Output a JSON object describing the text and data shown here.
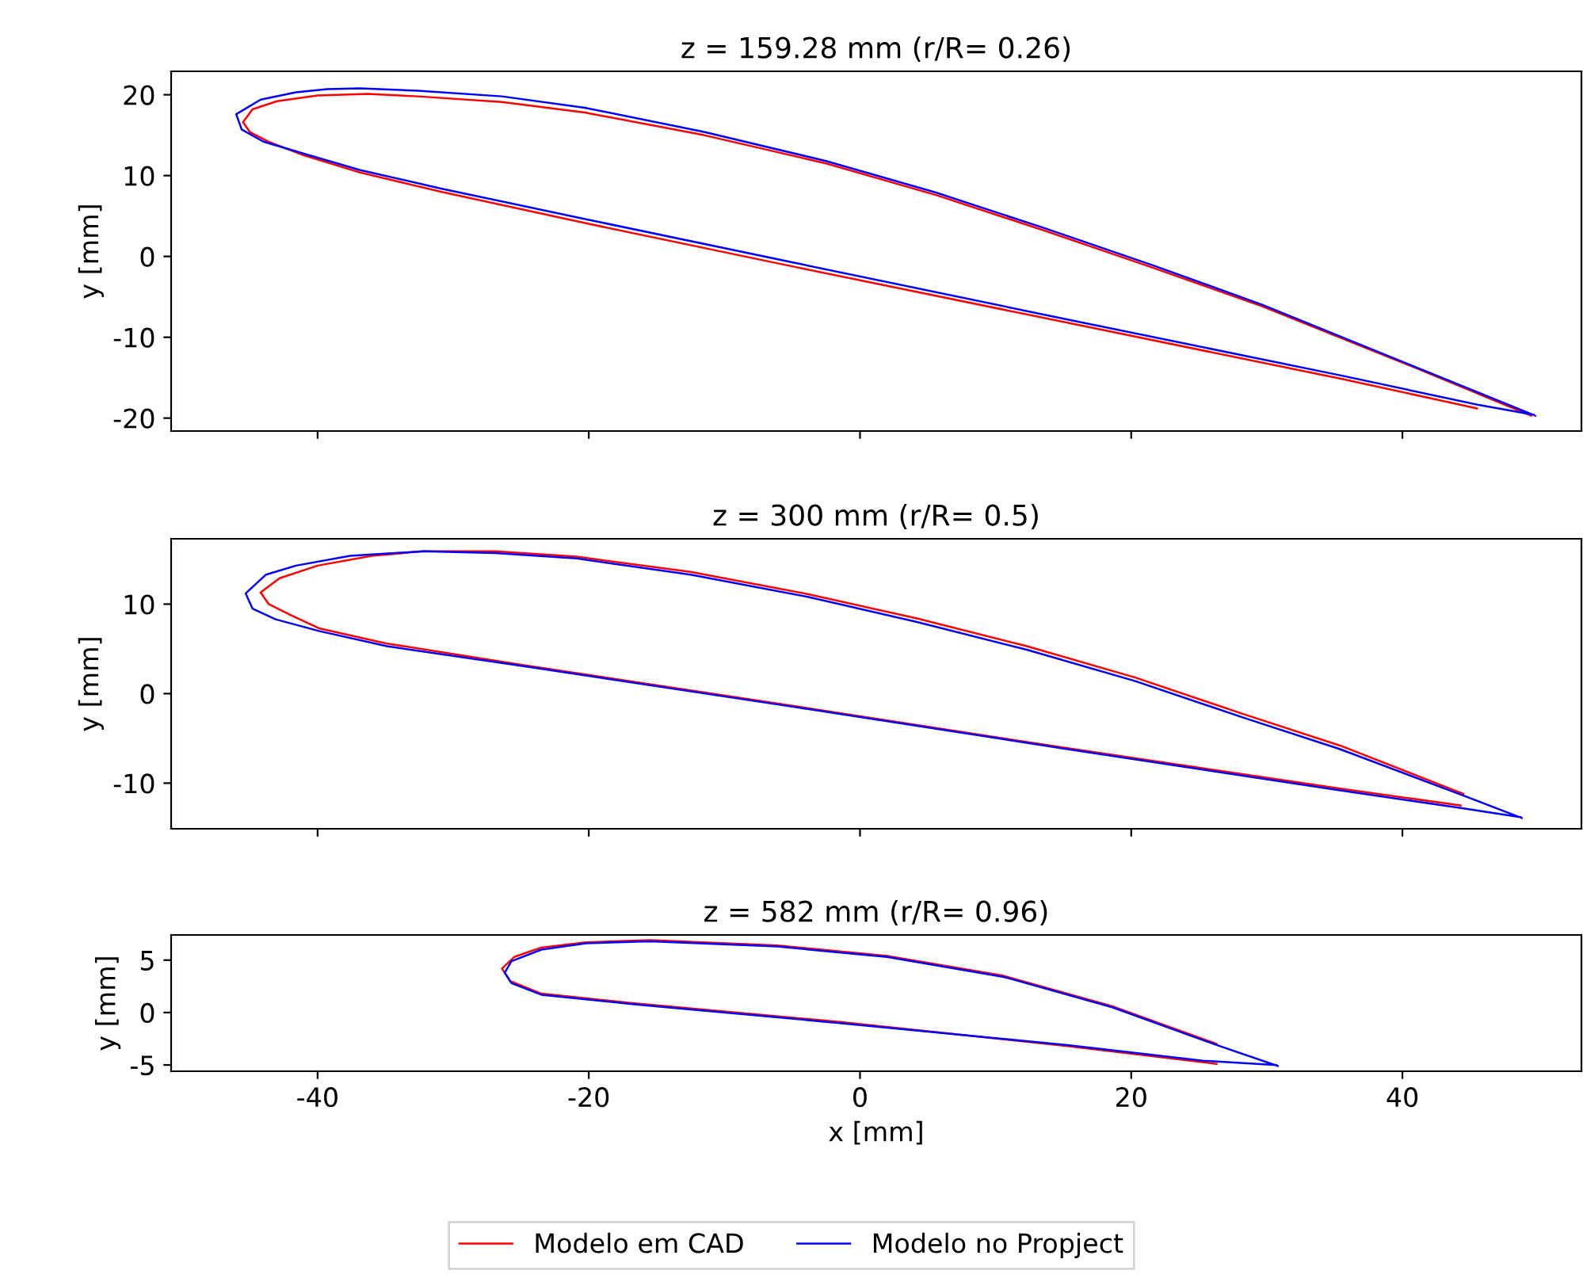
{
  "chart_data": [
    {
      "type": "line",
      "title": "z = 159.28 mm (r/R= 0.26)",
      "ylabel": "y [mm]",
      "xlim": [
        -50.8,
        53.2
      ],
      "xticks": [
        -40,
        -20,
        0,
        20,
        40
      ],
      "ylim": [
        -21.6,
        22.9
      ],
      "yticks": [
        -20,
        -10,
        0,
        10,
        20
      ],
      "tick_labels": "y",
      "grid": false,
      "line_style": "solid",
      "marker": "none",
      "series": [
        {
          "color": "#ff0000",
          "x": [
            49.5,
            40.7,
            29.7,
            21.6,
            13.6,
            5.6,
            -2.5,
            -11.5,
            -20.3,
            -26.4,
            -32.6,
            -36.3,
            -40,
            -43,
            -44.8,
            -45.5,
            -45,
            -43.5,
            -41,
            -36.9,
            -30.9,
            -20.2,
            -4.8,
            15.3,
            35.4,
            45.5
          ],
          "values": [
            -19.7,
            -13.6,
            -6.2,
            -1.4,
            3.2,
            7.6,
            11.5,
            15.0,
            17.8,
            19.1,
            19.8,
            20.1,
            19.9,
            19.2,
            18.2,
            16.6,
            15.4,
            14.1,
            12.5,
            10.4,
            8.0,
            4.1,
            -1.3,
            -8.2,
            -15.1,
            -18.8
          ]
        },
        {
          "color": "#0000ff",
          "x": [
            49.8,
            40.7,
            29.7,
            21.6,
            13.6,
            5.6,
            -2.5,
            -11.5,
            -20.3,
            -26.4,
            -32.6,
            -36.9,
            -39.3,
            -41.6,
            -44.2,
            -46.0,
            -45.6,
            -44.0,
            -41.0,
            -36.9,
            -30.9,
            -20.2,
            -4.8,
            15.3,
            35.4,
            45.7,
            49.7
          ],
          "values": [
            -19.7,
            -13.5,
            -6.0,
            -1.1,
            3.5,
            7.9,
            11.8,
            15.4,
            18.4,
            19.8,
            20.5,
            20.8,
            20.7,
            20.3,
            19.4,
            17.6,
            15.7,
            14.2,
            12.7,
            10.7,
            8.4,
            4.6,
            -0.8,
            -7.8,
            -14.7,
            -18.4,
            -19.6
          ]
        }
      ]
    },
    {
      "type": "line",
      "title": "z = 300 mm (r/R= 0.5)",
      "ylabel": "y [mm]",
      "xlim": [
        -50.8,
        53.2
      ],
      "xticks": [
        -40,
        -20,
        0,
        20,
        40
      ],
      "ylim": [
        -15.1,
        17.3
      ],
      "yticks": [
        -10,
        0,
        10
      ],
      "tick_labels": "y",
      "grid": false,
      "line_style": "solid",
      "marker": "none",
      "series": [
        {
          "color": "#ff0000",
          "x": [
            44.5,
            35.4,
            28.3,
            20.3,
            12.3,
            4.2,
            -3.8,
            -12.5,
            -20.9,
            -26.9,
            -32.2,
            -36,
            -40,
            -42.8,
            -44.2,
            -43.6,
            -42,
            -39.9,
            -34.9,
            -24.9,
            -4.8,
            15.3,
            35.4,
            44.3
          ],
          "values": [
            -11.2,
            -5.8,
            -2.3,
            1.8,
            5.3,
            8.4,
            11.1,
            13.6,
            15.3,
            15.9,
            15.9,
            15.4,
            14.3,
            12.9,
            11.3,
            10.0,
            8.8,
            7.3,
            5.6,
            3.2,
            -1.4,
            -6.1,
            -10.6,
            -12.5
          ]
        },
        {
          "color": "#0000ff",
          "x": [
            48.8,
            44.7,
            35.4,
            28.3,
            20.3,
            12.3,
            4.2,
            -3.8,
            -12.5,
            -20.9,
            -26.9,
            -32.2,
            -37.6,
            -41.6,
            -43.8,
            -45.3,
            -44.8,
            -43.1,
            -39.9,
            -34.9,
            -24.9,
            -4.8,
            15.3,
            35.4,
            44.4,
            48.7
          ],
          "values": [
            -13.9,
            -11.5,
            -6.2,
            -2.7,
            1.4,
            4.9,
            8.0,
            10.8,
            13.3,
            15.1,
            15.7,
            15.9,
            15.4,
            14.3,
            13.3,
            11.2,
            9.5,
            8.3,
            7.0,
            5.3,
            3.1,
            -1.5,
            -6.2,
            -10.8,
            -12.8,
            -13.8
          ]
        }
      ]
    },
    {
      "type": "line",
      "title": "z = 582 mm (r/R= 0.96)",
      "xlabel": "x [mm]",
      "ylabel": "y [mm]",
      "xlim": [
        -50.8,
        53.2
      ],
      "xticks": [
        -40,
        -20,
        0,
        20,
        40
      ],
      "ylim": [
        -5.6,
        7.4
      ],
      "yticks": [
        -5,
        0,
        5
      ],
      "grid": false,
      "legend": "bottom",
      "line_style": "solid",
      "marker": "none",
      "series": [
        {
          "name": "Modelo em CAD",
          "color": "#ff0000",
          "x": [
            26.3,
            18.6,
            10.6,
            2.0,
            -6.1,
            -15.5,
            -20.2,
            -23.5,
            -25.5,
            -26.4,
            -25.8,
            -23.5,
            -16.8,
            -1.5,
            15.3,
            26.3
          ],
          "values": [
            -3.0,
            0.6,
            3.5,
            5.4,
            6.4,
            6.9,
            6.7,
            6.2,
            5.3,
            4.2,
            3.0,
            1.8,
            0.9,
            -0.9,
            -3.2,
            -4.9
          ]
        },
        {
          "name": "Modelo no Propject",
          "color": "#0000ff",
          "x": [
            30.8,
            26.3,
            18.6,
            10.6,
            2.0,
            -6.1,
            -15.5,
            -20.2,
            -23.5,
            -25.7,
            -26.2,
            -25.7,
            -23.5,
            -16.8,
            -1.5,
            15.3,
            25.3,
            30.7
          ],
          "values": [
            -5.1,
            -3.1,
            0.5,
            3.4,
            5.3,
            6.3,
            6.8,
            6.6,
            6.0,
            4.9,
            3.8,
            2.8,
            1.7,
            0.8,
            -1.0,
            -3.1,
            -4.6,
            -5.0
          ]
        }
      ]
    }
  ]
}
